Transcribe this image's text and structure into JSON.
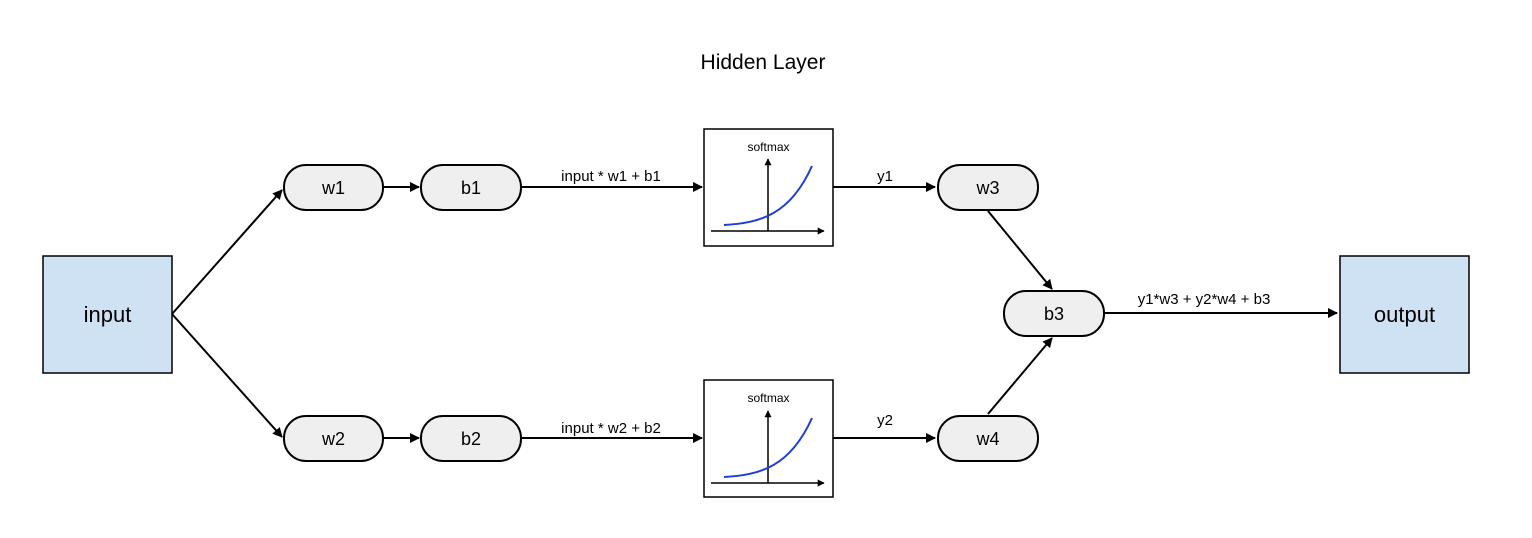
{
  "title": "Hidden Layer",
  "nodes": {
    "input": "input",
    "output": "output",
    "w1": "w1",
    "w2": "w2",
    "w3": "w3",
    "w4": "w4",
    "b1": "b1",
    "b2": "b2",
    "b3": "b3"
  },
  "activations": {
    "top": "softmax",
    "bottom": "softmax"
  },
  "edge_labels": {
    "b1_to_softmax": "input * w1 + b1",
    "b2_to_softmax": "input * w2 + b2",
    "softmax_to_w3": "y1",
    "softmax_to_w4": "y2",
    "b3_to_output": "y1*w3 + y2*w4 + b3"
  },
  "colors": {
    "io_fill": "#cfe2f3",
    "pill_fill": "#efefef",
    "curve": "#1c3fd6",
    "stroke": "#000000"
  }
}
